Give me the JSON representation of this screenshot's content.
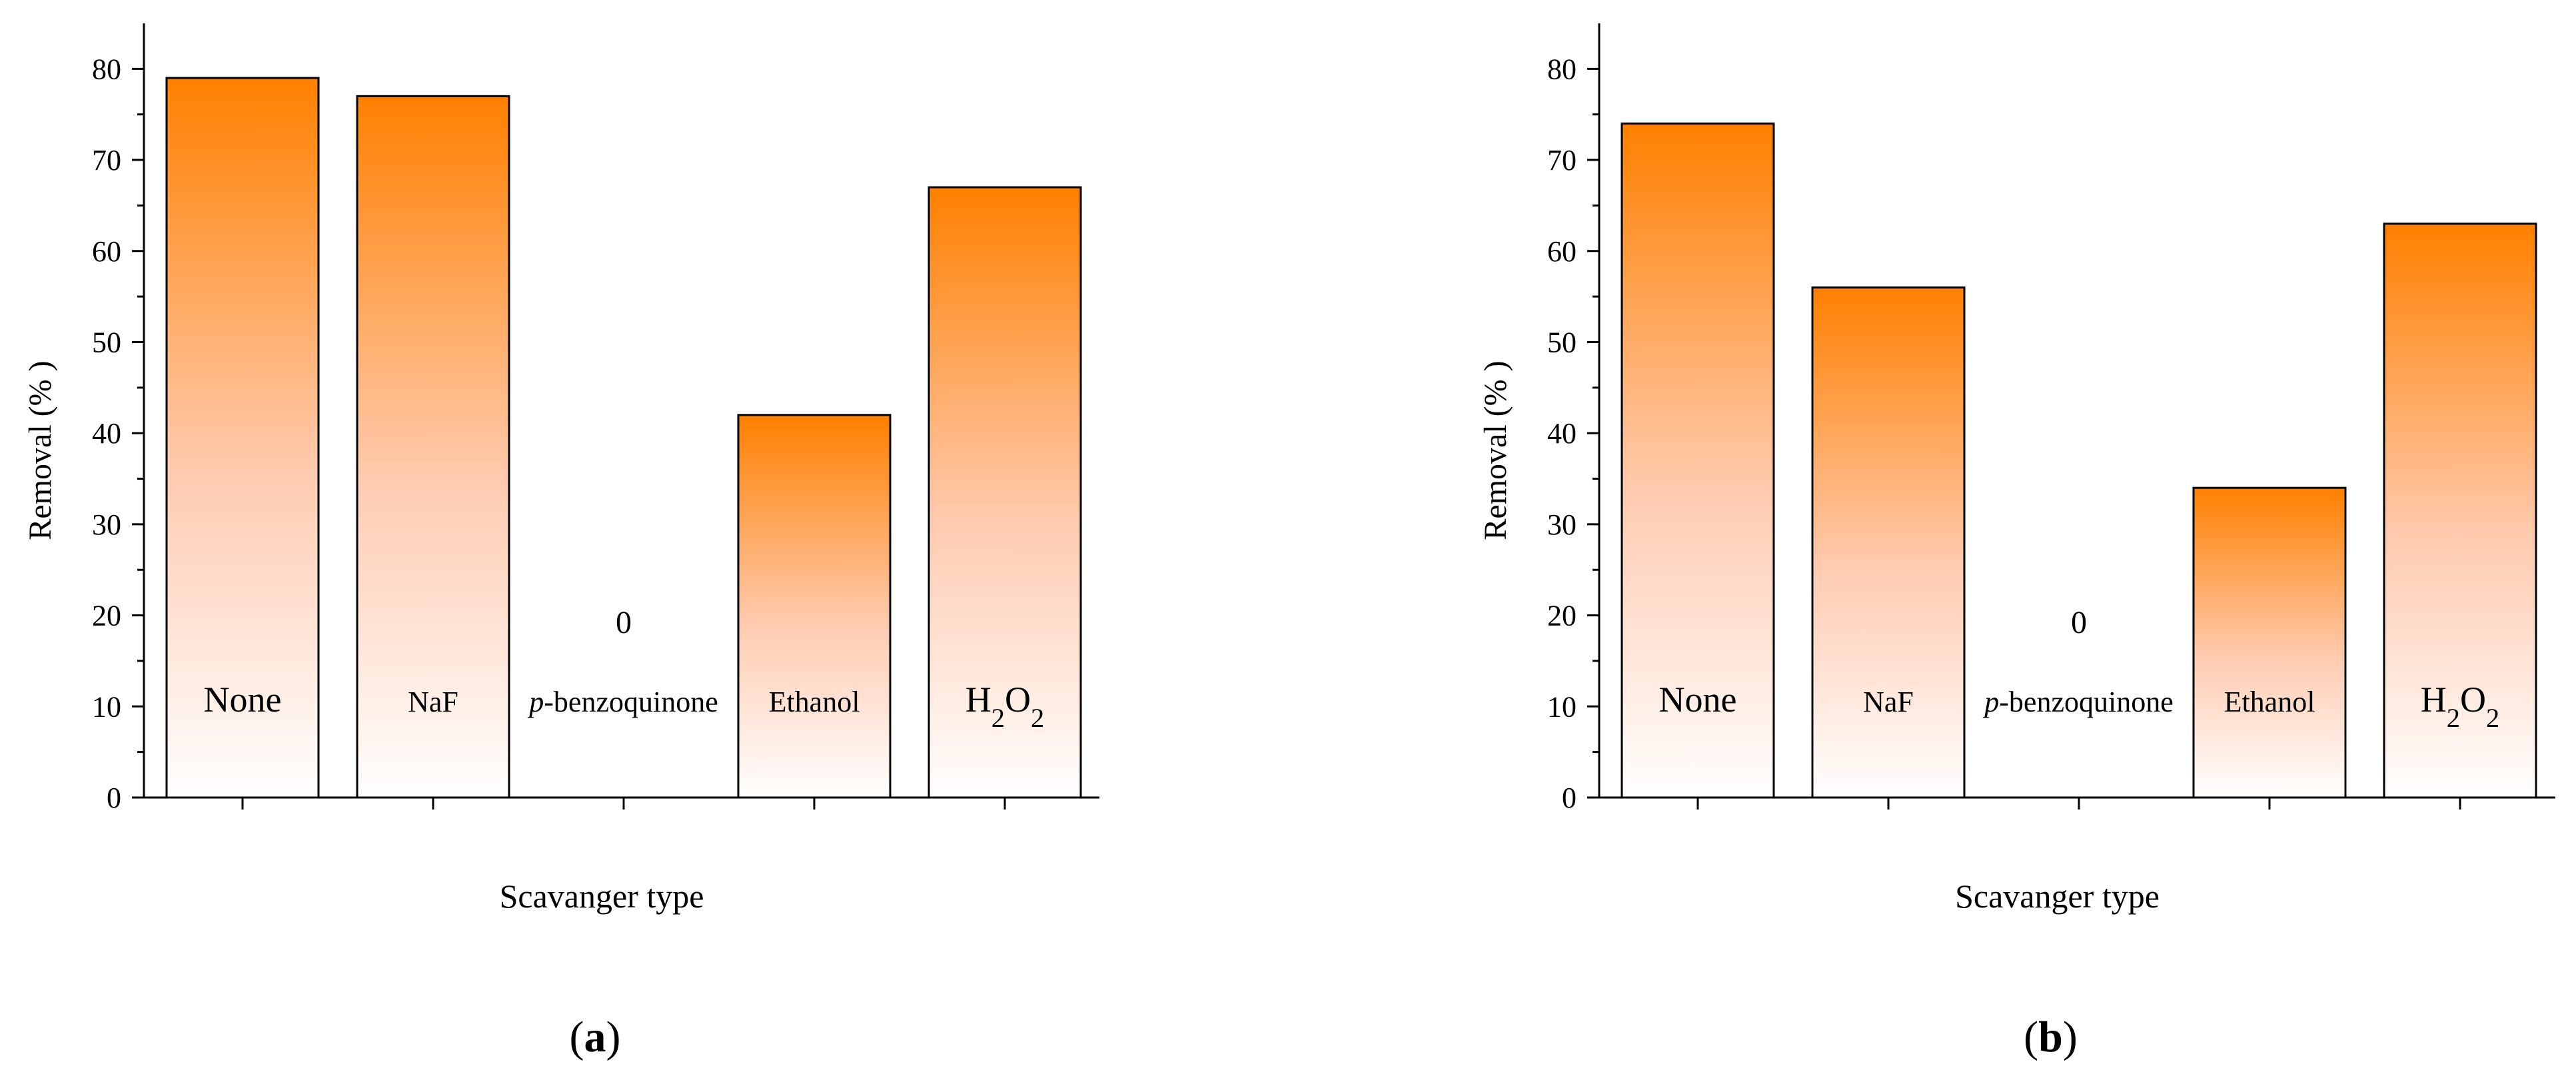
{
  "chart_data": [
    {
      "type": "bar",
      "panel_label": "a",
      "xlabel": "Scavanger type",
      "ylabel": "Removal (% )",
      "ylim": [
        0,
        85
      ],
      "yticks": [
        0,
        10,
        20,
        30,
        40,
        50,
        60,
        70,
        80
      ],
      "categories": [
        "None",
        "NaF",
        "p-benzoquinone",
        "Ethanol",
        "H2O2"
      ],
      "values": [
        79,
        77,
        0,
        42,
        67
      ],
      "zero_value_label": "0",
      "bar_gradient": {
        "top": "#ff8000",
        "bottom": "#ffffff"
      },
      "grid": false,
      "legend": "none"
    },
    {
      "type": "bar",
      "panel_label": "b",
      "xlabel": "Scavanger type",
      "ylabel": "Removal (% )",
      "ylim": [
        0,
        85
      ],
      "yticks": [
        0,
        10,
        20,
        30,
        40,
        50,
        60,
        70,
        80
      ],
      "categories": [
        "None",
        "NaF",
        "p-benzoquinone",
        "Ethanol",
        "H2O2"
      ],
      "values": [
        74,
        56,
        0,
        34,
        63
      ],
      "zero_value_label": "0",
      "bar_gradient": {
        "top": "#ff8000",
        "bottom": "#ffffff"
      },
      "grid": false,
      "legend": "none"
    }
  ]
}
